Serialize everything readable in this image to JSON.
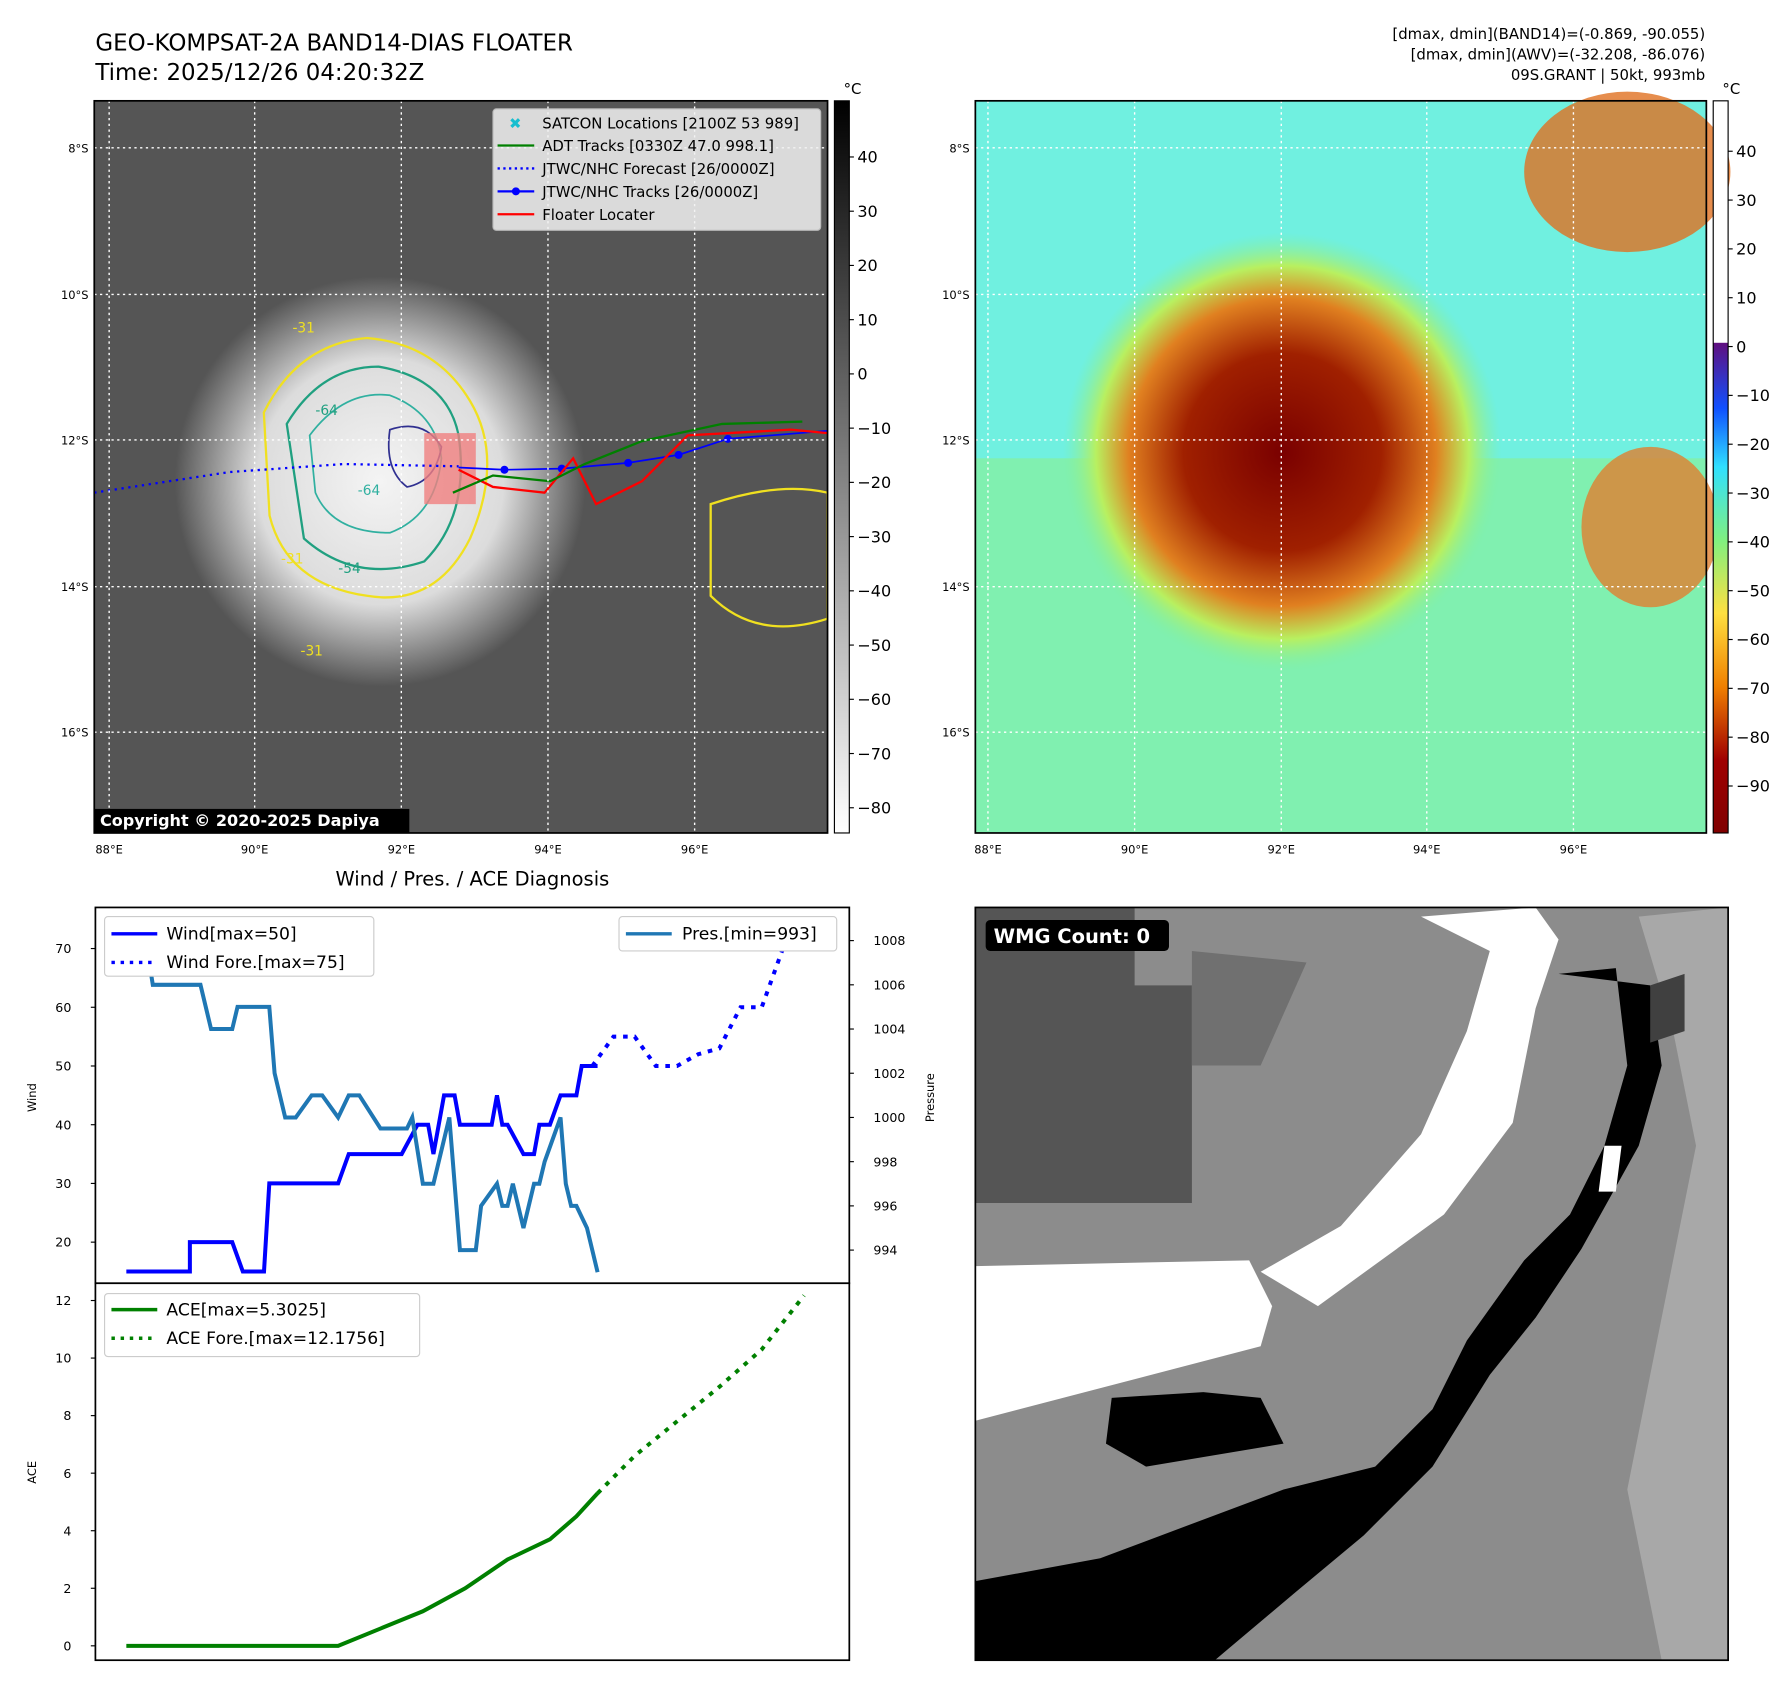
{
  "header": {
    "title_line1": "GEO-KOMPSAT-2A BAND14-DIAS FLOATER",
    "title_line2": "Time: 2025/12/26 04:20:32Z",
    "info_line1": "[dmax, dmin](BAND14)=(-0.869, -90.055)",
    "info_line2": "[dmax, dmin](AWV)=(-32.208, -86.076)",
    "info_line3": "09S.GRANT | 50kt, 993mb"
  },
  "map": {
    "lat_labels": [
      "8°S",
      "10°S",
      "12°S",
      "14°S",
      "16°S"
    ],
    "lon_labels": [
      "88°E",
      "90°E",
      "92°E",
      "94°E",
      "96°E"
    ],
    "copyright": "Copyright © 2020-2025 Dapiya",
    "unit": "°C",
    "contour_labels": [
      "-31",
      "-64",
      "-54",
      "-64",
      "-31",
      "-31"
    ],
    "legend": [
      {
        "label": "SATCON Locations [2100Z 53 989]",
        "color": "#17becf"
      },
      {
        "label": "ADT Tracks [0330Z 47.0 998.1]",
        "color": "#008000"
      },
      {
        "label": "JTWC/NHC Forecast [26/0000Z]",
        "color": "#0000ff"
      },
      {
        "label": "JTWC/NHC Tracks [26/0000Z]",
        "color": "#0000ff"
      },
      {
        "label": "Floater Locater",
        "color": "#ff0000"
      }
    ],
    "cbar_left_ticks": [
      "40",
      "30",
      "20",
      "10",
      "0",
      "−10",
      "−20",
      "−30",
      "−40",
      "−50",
      "−60",
      "−70",
      "−80"
    ],
    "cbar_right_ticks": [
      "40",
      "30",
      "20",
      "10",
      "0",
      "−10",
      "−20",
      "−30",
      "−40",
      "−50",
      "−60",
      "−70",
      "−80",
      "−90"
    ]
  },
  "diag": {
    "title": "Wind / Pres. / ACE Diagnosis",
    "wind_ylabel": "Wind",
    "pres_ylabel": "Pressure",
    "ace_ylabel": "ACE",
    "legend_wind": "Wind[max=50]",
    "legend_wind_fore": "Wind Fore.[max=75]",
    "legend_pres": "Pres.[min=993]",
    "legend_ace": "ACE[max=5.3025]",
    "legend_ace_fore": "ACE Fore.[max=12.1756]"
  },
  "wmg": {
    "label": "WMG Count: 0"
  },
  "chart_data": [
    {
      "type": "line",
      "title": "Wind / Pres. / ACE Diagnosis",
      "ylabel": "Wind",
      "y2label": "Pressure",
      "ylim": [
        13,
        77
      ],
      "y2lim": [
        992.5,
        1009.5
      ],
      "yticks": [
        20,
        30,
        40,
        50,
        60,
        70
      ],
      "y2ticks": [
        994,
        996,
        998,
        1000,
        1002,
        1004,
        1006,
        1008
      ],
      "xlim": [
        0,
        132
      ],
      "series": [
        {
          "name": "Wind",
          "color": "#0000ff",
          "style": "solid",
          "x": [
            0,
            12,
            12,
            20,
            22,
            26,
            27,
            28,
            28,
            40,
            42,
            52,
            55,
            56,
            57,
            58,
            59,
            60,
            62,
            63,
            64,
            65,
            69,
            70,
            71,
            72,
            75,
            77,
            78,
            80,
            82,
            85,
            86,
            89
          ],
          "y": [
            15,
            15,
            20,
            20,
            15,
            15,
            30,
            30,
            30,
            30,
            35,
            35,
            40,
            40,
            40,
            35,
            40,
            45,
            45,
            40,
            40,
            40,
            40,
            45,
            40,
            40,
            35,
            35,
            40,
            40,
            45,
            45,
            50,
            50
          ]
        },
        {
          "name": "Wind Fore.",
          "color": "#0000ff",
          "style": "dotted",
          "x": [
            88,
            92,
            96,
            100,
            104,
            108,
            112,
            116,
            120,
            124,
            128
          ],
          "y": [
            50,
            55,
            55,
            50,
            50,
            52,
            53,
            60,
            60,
            70,
            75
          ]
        },
        {
          "name": "Pres.",
          "color": "#1f77b4",
          "style": "solid",
          "axis": "y2",
          "x": [
            0,
            3,
            5,
            14,
            16,
            20,
            21,
            27,
            28,
            30,
            32,
            35,
            37,
            40,
            42,
            44,
            48,
            53,
            54,
            56,
            58,
            61,
            63,
            66,
            67,
            70,
            71,
            72,
            73,
            75,
            77,
            78,
            79,
            82,
            83,
            84,
            85,
            87,
            89
          ],
          "y": [
            1009,
            1009,
            1006,
            1006,
            1004,
            1004,
            1005,
            1005,
            1002,
            1000,
            1000,
            1001,
            1001,
            1000,
            1001,
            1001,
            999.5,
            999.5,
            1000,
            997,
            997,
            1000,
            994,
            994,
            996,
            997,
            996,
            996,
            997,
            995,
            997,
            997,
            998,
            1000,
            997,
            996,
            996,
            995,
            993
          ]
        }
      ]
    },
    {
      "type": "line",
      "ylabel": "ACE",
      "ylim": [
        -0.5,
        12.6
      ],
      "yticks": [
        0,
        2,
        4,
        6,
        8,
        10,
        12
      ],
      "xlim": [
        0,
        132
      ],
      "series": [
        {
          "name": "ACE",
          "color": "#008000",
          "style": "solid",
          "x": [
            0,
            40,
            48,
            56,
            64,
            72,
            80,
            85,
            89
          ],
          "y": [
            0,
            0,
            0.6,
            1.2,
            2.0,
            3.0,
            3.7,
            4.5,
            5.3025
          ]
        },
        {
          "name": "ACE Fore.",
          "color": "#008000",
          "style": "dotted",
          "x": [
            89,
            96,
            104,
            112,
            120,
            128
          ],
          "y": [
            5.3,
            6.6,
            7.8,
            9.0,
            10.3,
            12.1756
          ]
        }
      ]
    }
  ]
}
